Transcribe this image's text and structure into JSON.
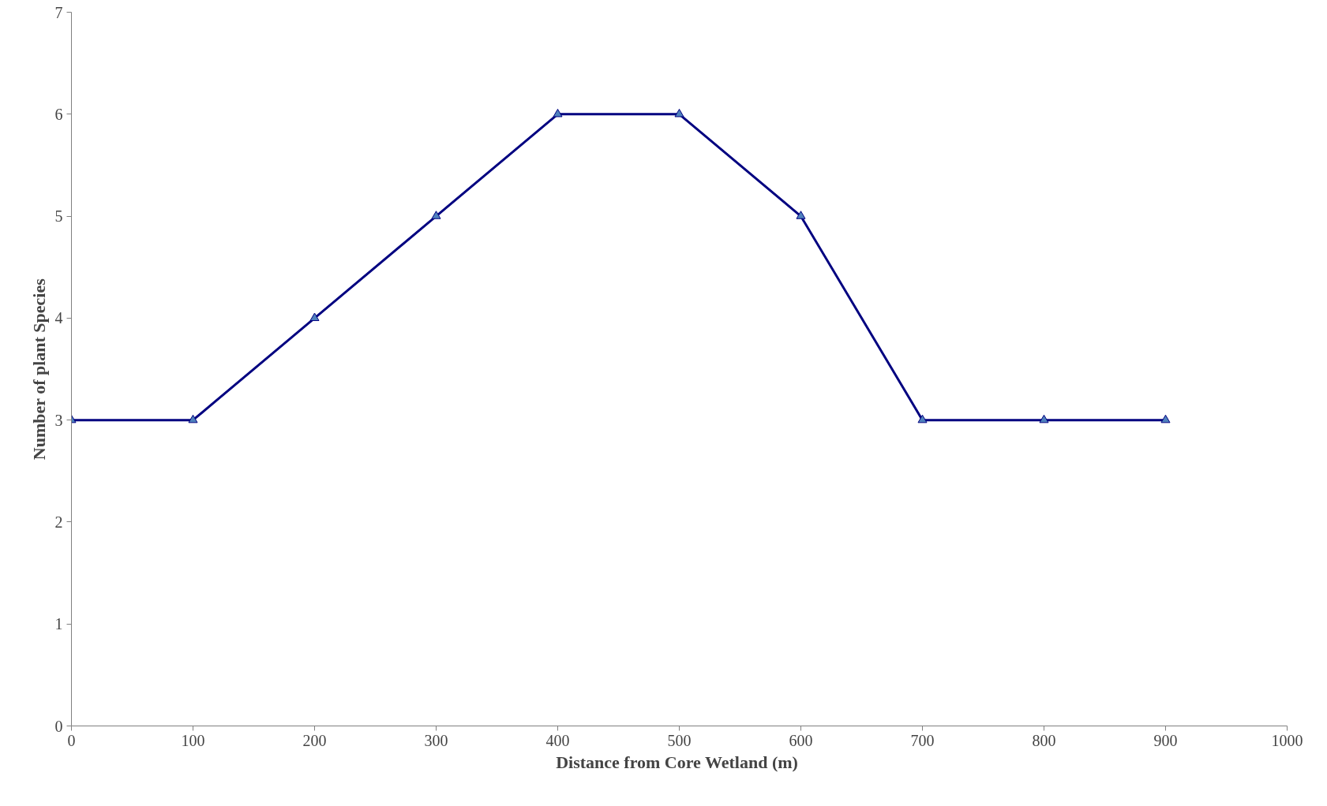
{
  "chart_data": {
    "type": "line",
    "xlabel": "Distance from  Core Wetland (m)",
    "ylabel": "Number of plant Species",
    "x": [
      0,
      100,
      200,
      300,
      400,
      500,
      600,
      700,
      800,
      900
    ],
    "series": [
      {
        "color": "#000080",
        "values": [
          3,
          3,
          4,
          5,
          6,
          6,
          5,
          3,
          3,
          3
        ]
      }
    ],
    "xlim": [
      0,
      1000
    ],
    "xticks": [
      0,
      100,
      200,
      300,
      400,
      500,
      600,
      700,
      800,
      900,
      1000
    ],
    "ylim": [
      0,
      7
    ],
    "yticks": [
      0,
      1,
      2,
      3,
      4,
      5,
      6,
      7
    ],
    "marker": "triangle",
    "line_style": "solid"
  }
}
